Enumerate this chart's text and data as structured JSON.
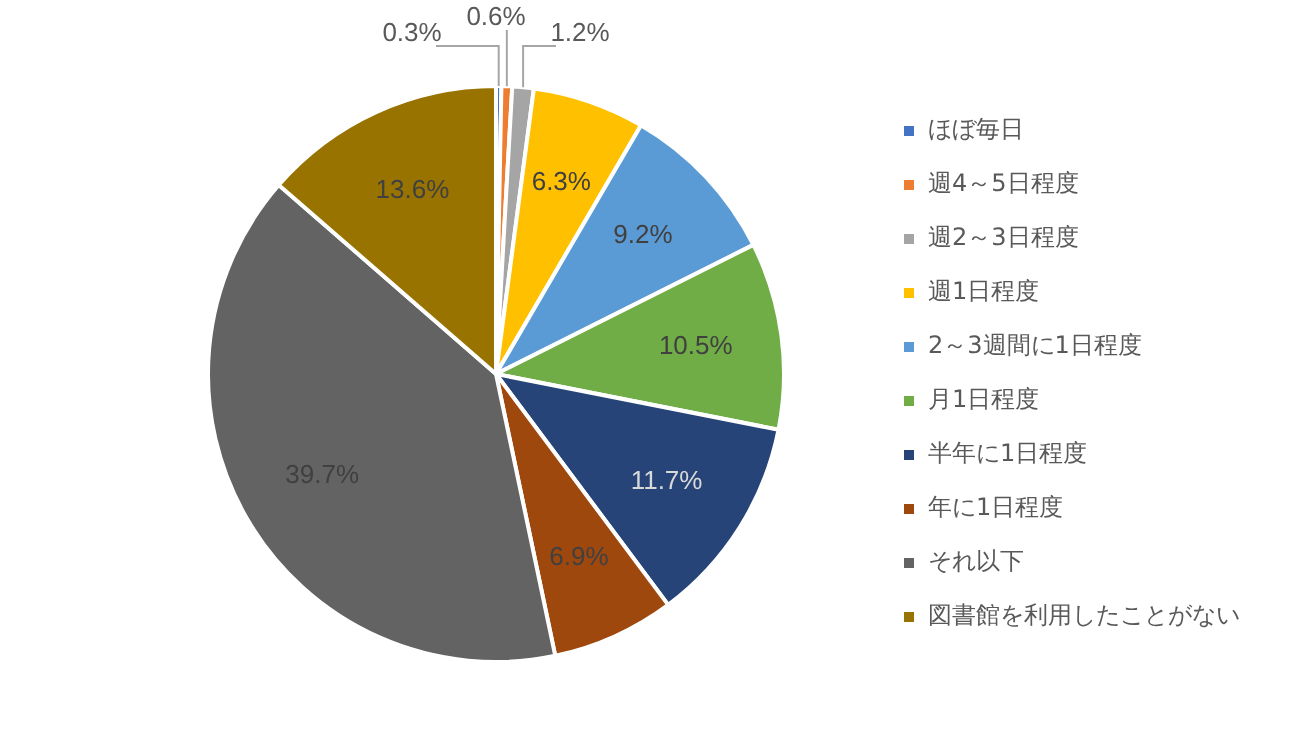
{
  "chart_data": {
    "type": "pie",
    "categories": [
      "ほぼ毎日",
      "週4～5日程度",
      "週2～3日程度",
      "週1日程度",
      "2～3週間に1日程度",
      "月1日程度",
      "半年に1日程度",
      "年に1日程度",
      "それ以下",
      "図書館を利用したことがない"
    ],
    "values": [
      0.3,
      0.6,
      1.2,
      6.3,
      9.2,
      10.5,
      11.7,
      6.9,
      39.7,
      13.6
    ],
    "value_labels": [
      "0.3%",
      "0.6%",
      "1.2%",
      "6.3%",
      "9.2%",
      "10.5%",
      "11.7%",
      "6.9%",
      "39.7%",
      "13.6%"
    ],
    "colors": [
      "#4472c4",
      "#ed7d31",
      "#a5a5a5",
      "#ffc000",
      "#5b9bd5",
      "#70ad47",
      "#264478",
      "#9e480e",
      "#636363",
      "#997300"
    ],
    "legend": "right"
  }
}
